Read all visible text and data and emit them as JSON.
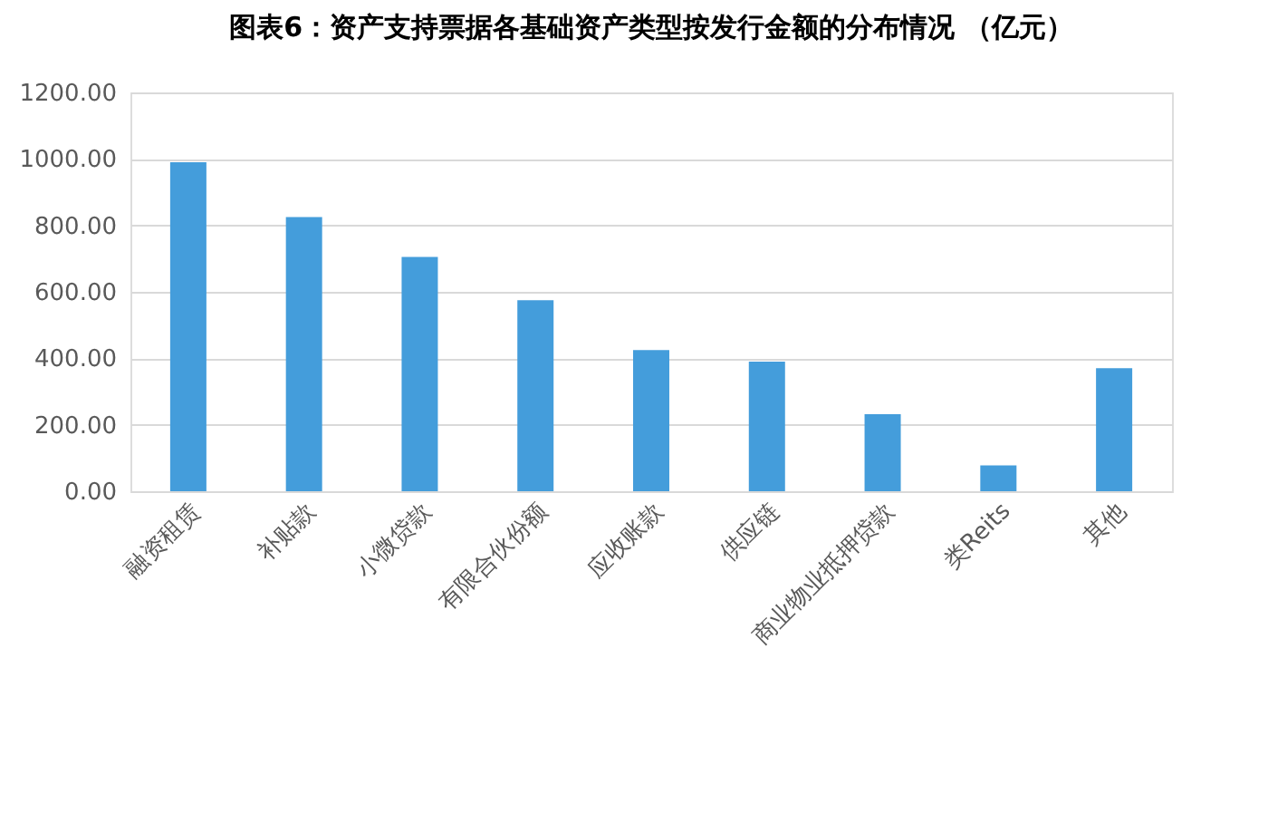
{
  "chart_data": {
    "type": "bar",
    "title": "图表6：资产支持票据各基础资产类型按发行金额的分布情况 （亿元）",
    "categories": [
      "融资租赁",
      "补贴款",
      "小微贷款",
      "有限合伙份额",
      "应收账款",
      "供应链",
      "商业物业抵押贷款",
      "类Reits",
      "其他"
    ],
    "values": [
      990,
      825,
      705,
      575,
      425,
      390,
      232,
      78,
      370
    ],
    "color": "#449ddb",
    "ylim": [
      0,
      1200
    ],
    "yticks": [
      {
        "value": 0,
        "label": "0.00"
      },
      {
        "value": 200,
        "label": "200.00"
      },
      {
        "value": 400,
        "label": "400.00"
      },
      {
        "value": 600,
        "label": "600.00"
      },
      {
        "value": 800,
        "label": "800.00"
      },
      {
        "value": 1000,
        "label": "1000.00"
      },
      {
        "value": 1200,
        "label": "1200.00"
      }
    ],
    "grid": "y"
  }
}
